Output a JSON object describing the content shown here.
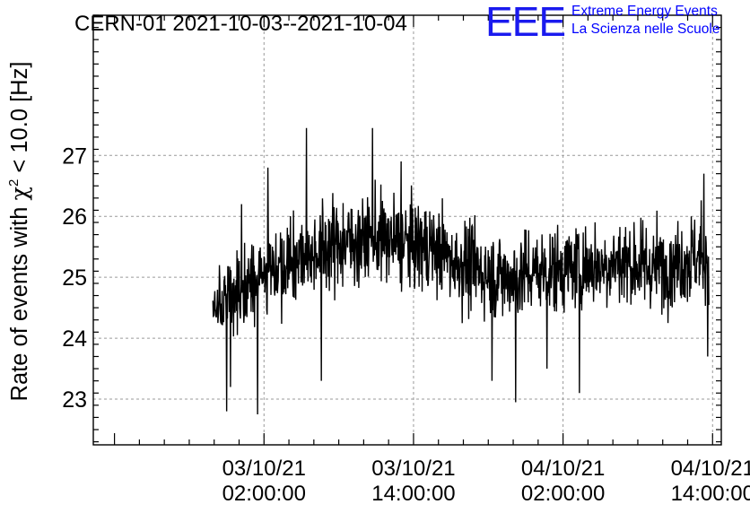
{
  "chart_data": {
    "type": "line",
    "title": "CERN-01 2021-10-03--2021-10-04",
    "ylabel": "Rate of events with χ² < 10.0 [Hz]",
    "ylabel_parts": {
      "prefix": "Rate of events with ",
      "chi": "χ",
      "sup": "2",
      "suffix": " < 10.0 [Hz]"
    },
    "xlabel": "",
    "ylim": [
      22.25,
      29.3
    ],
    "yticks": [
      23,
      24,
      25,
      26,
      27
    ],
    "xlim_hours": [
      -11.7,
      38.7
    ],
    "x_origin": "2021-10-03 00:00",
    "xticks": [
      {
        "hours": 2,
        "date": "03/10/21",
        "time": "02:00:00"
      },
      {
        "hours": 14,
        "date": "03/10/21",
        "time": "14:00:00"
      },
      {
        "hours": 26,
        "date": "04/10/21",
        "time": "02:00:00"
      },
      {
        "hours": 38,
        "date": "04/10/21",
        "time": "14:00:00"
      }
    ],
    "grid": true,
    "color": "#000000",
    "series": [
      {
        "name": "",
        "x_start_hours": -2.1,
        "x_end_hours": 37.7,
        "trend": [
          [
            -2.1,
            24.5
          ],
          [
            -1.0,
            24.7
          ],
          [
            0.0,
            24.8
          ],
          [
            1.0,
            24.95
          ],
          [
            2.0,
            25.1
          ],
          [
            3.0,
            25.2
          ],
          [
            4.0,
            25.3
          ],
          [
            5.0,
            25.35
          ],
          [
            6.0,
            25.45
          ],
          [
            7.0,
            25.5
          ],
          [
            8.0,
            25.55
          ],
          [
            9.0,
            25.6
          ],
          [
            10.0,
            25.6
          ],
          [
            11.0,
            25.65
          ],
          [
            12.0,
            25.6
          ],
          [
            13.0,
            25.55
          ],
          [
            14.0,
            25.55
          ],
          [
            15.0,
            25.5
          ],
          [
            16.0,
            25.45
          ],
          [
            17.0,
            25.3
          ],
          [
            18.0,
            25.2
          ],
          [
            19.0,
            25.15
          ],
          [
            20.0,
            25.05
          ],
          [
            21.0,
            25.0
          ],
          [
            22.0,
            25.0
          ],
          [
            23.0,
            25.05
          ],
          [
            24.0,
            25.1
          ],
          [
            25.0,
            25.1
          ],
          [
            26.0,
            25.15
          ],
          [
            27.0,
            25.15
          ],
          [
            28.0,
            25.2
          ],
          [
            29.0,
            25.2
          ],
          [
            30.0,
            25.25
          ],
          [
            31.0,
            25.25
          ],
          [
            32.0,
            25.2
          ],
          [
            33.0,
            25.15
          ],
          [
            34.0,
            25.2
          ],
          [
            35.0,
            25.25
          ],
          [
            36.0,
            25.3
          ],
          [
            37.0,
            25.35
          ],
          [
            37.7,
            25.4
          ]
        ],
        "noise_sd": 0.42,
        "extremes": [
          [
            -1.0,
            22.8
          ],
          [
            -0.7,
            23.2
          ],
          [
            0.2,
            26.2
          ],
          [
            1.5,
            22.75
          ],
          [
            2.3,
            26.8
          ],
          [
            5.4,
            27.45
          ],
          [
            6.6,
            23.3
          ],
          [
            10.7,
            27.45
          ],
          [
            13.0,
            26.9
          ],
          [
            20.3,
            23.3
          ],
          [
            22.2,
            22.95
          ],
          [
            24.7,
            23.5
          ],
          [
            27.3,
            23.1
          ],
          [
            37.3,
            26.7
          ],
          [
            37.6,
            23.7
          ]
        ],
        "samples": 1300
      }
    ]
  },
  "legend": {
    "logo_text": "EEE",
    "line1": "Extreme Energy Events",
    "line2": "La Scienza nelle Scuole"
  }
}
